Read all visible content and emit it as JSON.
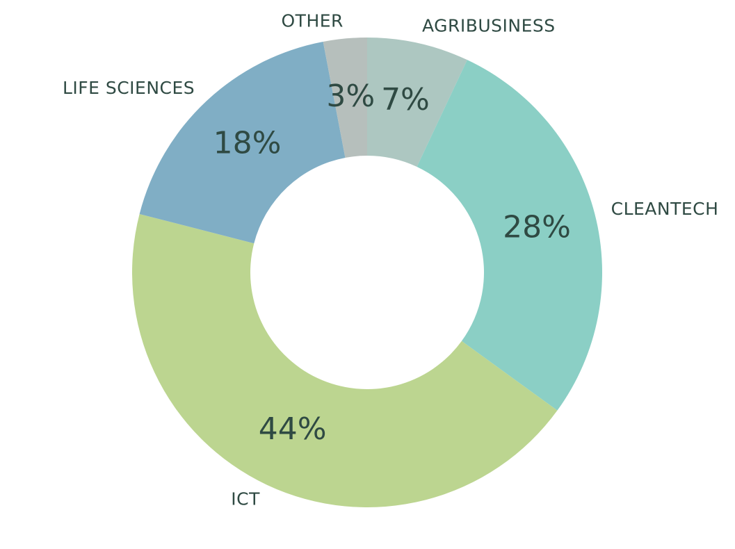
{
  "chart_data": {
    "type": "donut",
    "categories": [
      "AGRIBUSINESS",
      "CLEANTECH",
      "ICT",
      "LIFE SCIENCES",
      "OTHER"
    ],
    "values": [
      7,
      28,
      44,
      18,
      3
    ],
    "value_labels": [
      "7%",
      "28%",
      "44%",
      "18%",
      "3%"
    ],
    "colors": [
      "#adc7c1",
      "#8bcfc5",
      "#bcd590",
      "#80aec5",
      "#b6bfbc"
    ]
  }
}
